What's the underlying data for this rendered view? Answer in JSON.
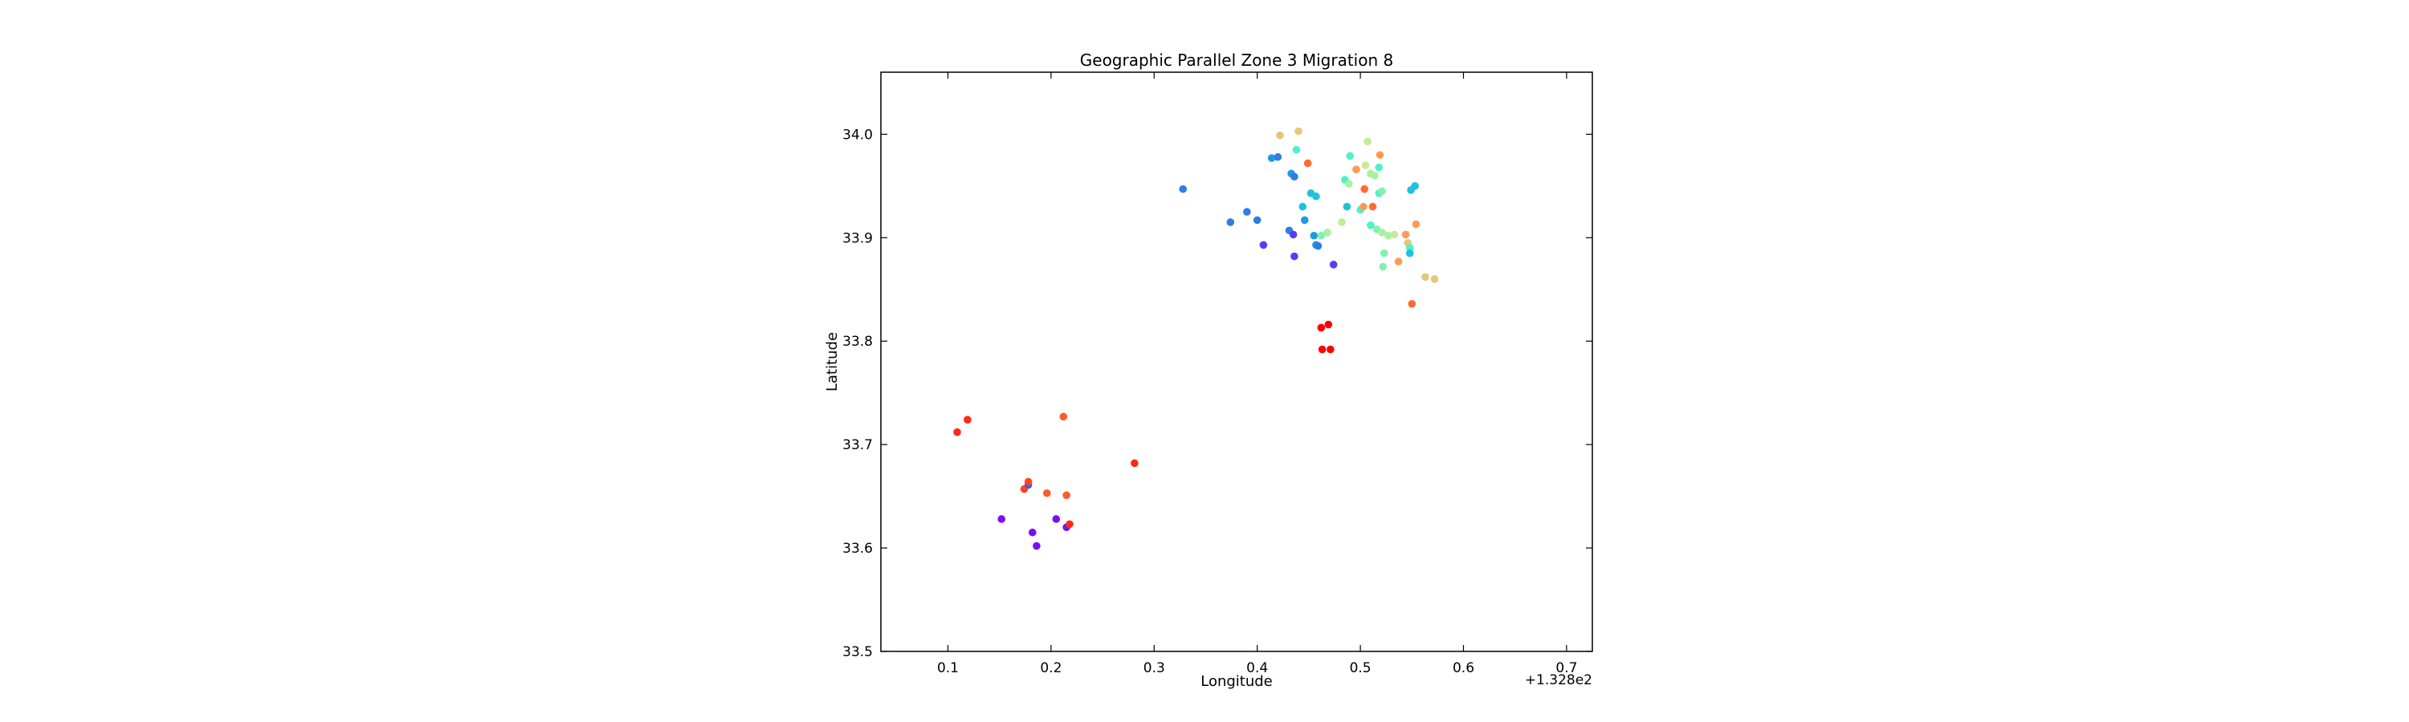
{
  "chart_data": {
    "type": "scatter",
    "title": "Geographic Parallel Zone 3 Migration 8",
    "xlabel": "Longitude",
    "ylabel": "Latitude",
    "x_offset_label": "+1.328e2",
    "xlim": [
      0.035,
      0.725
    ],
    "ylim": [
      33.5,
      34.06
    ],
    "xticks": [
      0.1,
      0.2,
      0.3,
      0.4,
      0.5,
      0.6,
      0.7
    ],
    "xtick_labels": [
      "0.1",
      "0.2",
      "0.3",
      "0.4",
      "0.5",
      "0.6",
      "0.7"
    ],
    "yticks": [
      33.5,
      33.6,
      33.7,
      33.8,
      33.9,
      34.0
    ],
    "ytick_labels": [
      "33.5",
      "33.6",
      "33.7",
      "33.8",
      "33.9",
      "34.0"
    ],
    "grid": false,
    "legend": "none",
    "colormap": "rainbow",
    "points": [
      {
        "x": 0.109,
        "y": 33.712,
        "color": "#ff2a15"
      },
      {
        "x": 0.119,
        "y": 33.724,
        "color": "#ff2a15"
      },
      {
        "x": 0.212,
        "y": 33.727,
        "color": "#ff5a2c"
      },
      {
        "x": 0.281,
        "y": 33.682,
        "color": "#ff2a15"
      },
      {
        "x": 0.174,
        "y": 33.657,
        "color": "#ff4422"
      },
      {
        "x": 0.178,
        "y": 33.661,
        "color": "#3d59f8"
      },
      {
        "x": 0.178,
        "y": 33.664,
        "color": "#ff4422"
      },
      {
        "x": 0.196,
        "y": 33.653,
        "color": "#ff5a2c"
      },
      {
        "x": 0.215,
        "y": 33.651,
        "color": "#ff5a2c"
      },
      {
        "x": 0.152,
        "y": 33.628,
        "color": "#7a0ef8"
      },
      {
        "x": 0.205,
        "y": 33.628,
        "color": "#7a0ef8"
      },
      {
        "x": 0.182,
        "y": 33.615,
        "color": "#7a0ef8"
      },
      {
        "x": 0.186,
        "y": 33.602,
        "color": "#7a0ef8"
      },
      {
        "x": 0.215,
        "y": 33.62,
        "color": "#7a0ef8"
      },
      {
        "x": 0.218,
        "y": 33.623,
        "color": "#ff2a15"
      },
      {
        "x": 0.462,
        "y": 33.813,
        "color": "#ff0000"
      },
      {
        "x": 0.469,
        "y": 33.816,
        "color": "#ff0000"
      },
      {
        "x": 0.463,
        "y": 33.792,
        "color": "#ff0000"
      },
      {
        "x": 0.471,
        "y": 33.792,
        "color": "#ff0000"
      },
      {
        "x": 0.55,
        "y": 33.836,
        "color": "#ff6a35"
      },
      {
        "x": 0.328,
        "y": 33.947,
        "color": "#2f7de6"
      },
      {
        "x": 0.374,
        "y": 33.915,
        "color": "#2f7de6"
      },
      {
        "x": 0.39,
        "y": 33.925,
        "color": "#2f7de6"
      },
      {
        "x": 0.4,
        "y": 33.917,
        "color": "#2f7de6"
      },
      {
        "x": 0.406,
        "y": 33.893,
        "color": "#5a3cf5"
      },
      {
        "x": 0.414,
        "y": 33.977,
        "color": "#1e9be0"
      },
      {
        "x": 0.42,
        "y": 33.978,
        "color": "#2f7de6"
      },
      {
        "x": 0.422,
        "y": 33.999,
        "color": "#e4c878"
      },
      {
        "x": 0.431,
        "y": 33.907,
        "color": "#2f7de6"
      },
      {
        "x": 0.435,
        "y": 33.903,
        "color": "#5a3cf5"
      },
      {
        "x": 0.433,
        "y": 33.962,
        "color": "#1e9be0"
      },
      {
        "x": 0.436,
        "y": 33.959,
        "color": "#2f7de6"
      },
      {
        "x": 0.436,
        "y": 33.882,
        "color": "#5a3cf5"
      },
      {
        "x": 0.438,
        "y": 33.985,
        "color": "#4ff1c8"
      },
      {
        "x": 0.44,
        "y": 34.003,
        "color": "#e4c878"
      },
      {
        "x": 0.444,
        "y": 33.93,
        "color": "#1ec2dd"
      },
      {
        "x": 0.446,
        "y": 33.917,
        "color": "#1e9be0"
      },
      {
        "x": 0.449,
        "y": 33.972,
        "color": "#ff6a35"
      },
      {
        "x": 0.452,
        "y": 33.943,
        "color": "#1ec2dd"
      },
      {
        "x": 0.457,
        "y": 33.94,
        "color": "#1ec2dd"
      },
      {
        "x": 0.455,
        "y": 33.902,
        "color": "#1e9be0"
      },
      {
        "x": 0.457,
        "y": 33.893,
        "color": "#1e9be0"
      },
      {
        "x": 0.459,
        "y": 33.892,
        "color": "#2f7de6"
      },
      {
        "x": 0.462,
        "y": 33.902,
        "color": "#7ff2b0"
      },
      {
        "x": 0.468,
        "y": 33.905,
        "color": "#a8f2a0"
      },
      {
        "x": 0.474,
        "y": 33.874,
        "color": "#5a3cf5"
      },
      {
        "x": 0.482,
        "y": 33.915,
        "color": "#c8e89a"
      },
      {
        "x": 0.485,
        "y": 33.956,
        "color": "#4ff1c8"
      },
      {
        "x": 0.487,
        "y": 33.93,
        "color": "#1ec2dd"
      },
      {
        "x": 0.489,
        "y": 33.952,
        "color": "#a8f2a0"
      },
      {
        "x": 0.49,
        "y": 33.979,
        "color": "#4ff1c8"
      },
      {
        "x": 0.496,
        "y": 33.966,
        "color": "#ff9a55"
      },
      {
        "x": 0.5,
        "y": 33.927,
        "color": "#4ff1c8"
      },
      {
        "x": 0.503,
        "y": 33.93,
        "color": "#ff9a55"
      },
      {
        "x": 0.504,
        "y": 33.947,
        "color": "#ff6a35"
      },
      {
        "x": 0.505,
        "y": 33.97,
        "color": "#c8e89a"
      },
      {
        "x": 0.507,
        "y": 33.993,
        "color": "#c8e89a"
      },
      {
        "x": 0.51,
        "y": 33.962,
        "color": "#a8f2a0"
      },
      {
        "x": 0.512,
        "y": 33.93,
        "color": "#ff6a35"
      },
      {
        "x": 0.51,
        "y": 33.912,
        "color": "#4ff1c8"
      },
      {
        "x": 0.514,
        "y": 33.96,
        "color": "#a8f2a0"
      },
      {
        "x": 0.516,
        "y": 33.908,
        "color": "#7ff2b0"
      },
      {
        "x": 0.518,
        "y": 33.943,
        "color": "#4ff1c8"
      },
      {
        "x": 0.518,
        "y": 33.968,
        "color": "#4ff1c8"
      },
      {
        "x": 0.519,
        "y": 33.98,
        "color": "#ff9a55"
      },
      {
        "x": 0.521,
        "y": 33.945,
        "color": "#7ff2b0"
      },
      {
        "x": 0.521,
        "y": 33.905,
        "color": "#a8f2a0"
      },
      {
        "x": 0.523,
        "y": 33.885,
        "color": "#7ff2b0"
      },
      {
        "x": 0.522,
        "y": 33.872,
        "color": "#7ff2b0"
      },
      {
        "x": 0.527,
        "y": 33.902,
        "color": "#a8f2a0"
      },
      {
        "x": 0.533,
        "y": 33.903,
        "color": "#c8e89a"
      },
      {
        "x": 0.537,
        "y": 33.877,
        "color": "#ff9a55"
      },
      {
        "x": 0.544,
        "y": 33.903,
        "color": "#ff9a55"
      },
      {
        "x": 0.546,
        "y": 33.895,
        "color": "#e4c878"
      },
      {
        "x": 0.548,
        "y": 33.89,
        "color": "#4ff1c8"
      },
      {
        "x": 0.548,
        "y": 33.885,
        "color": "#1ec2dd"
      },
      {
        "x": 0.549,
        "y": 33.946,
        "color": "#1ec2dd"
      },
      {
        "x": 0.553,
        "y": 33.95,
        "color": "#1ec2dd"
      },
      {
        "x": 0.554,
        "y": 33.913,
        "color": "#ff9a55"
      },
      {
        "x": 0.563,
        "y": 33.862,
        "color": "#e4c878"
      },
      {
        "x": 0.572,
        "y": 33.86,
        "color": "#e4c878"
      }
    ]
  }
}
